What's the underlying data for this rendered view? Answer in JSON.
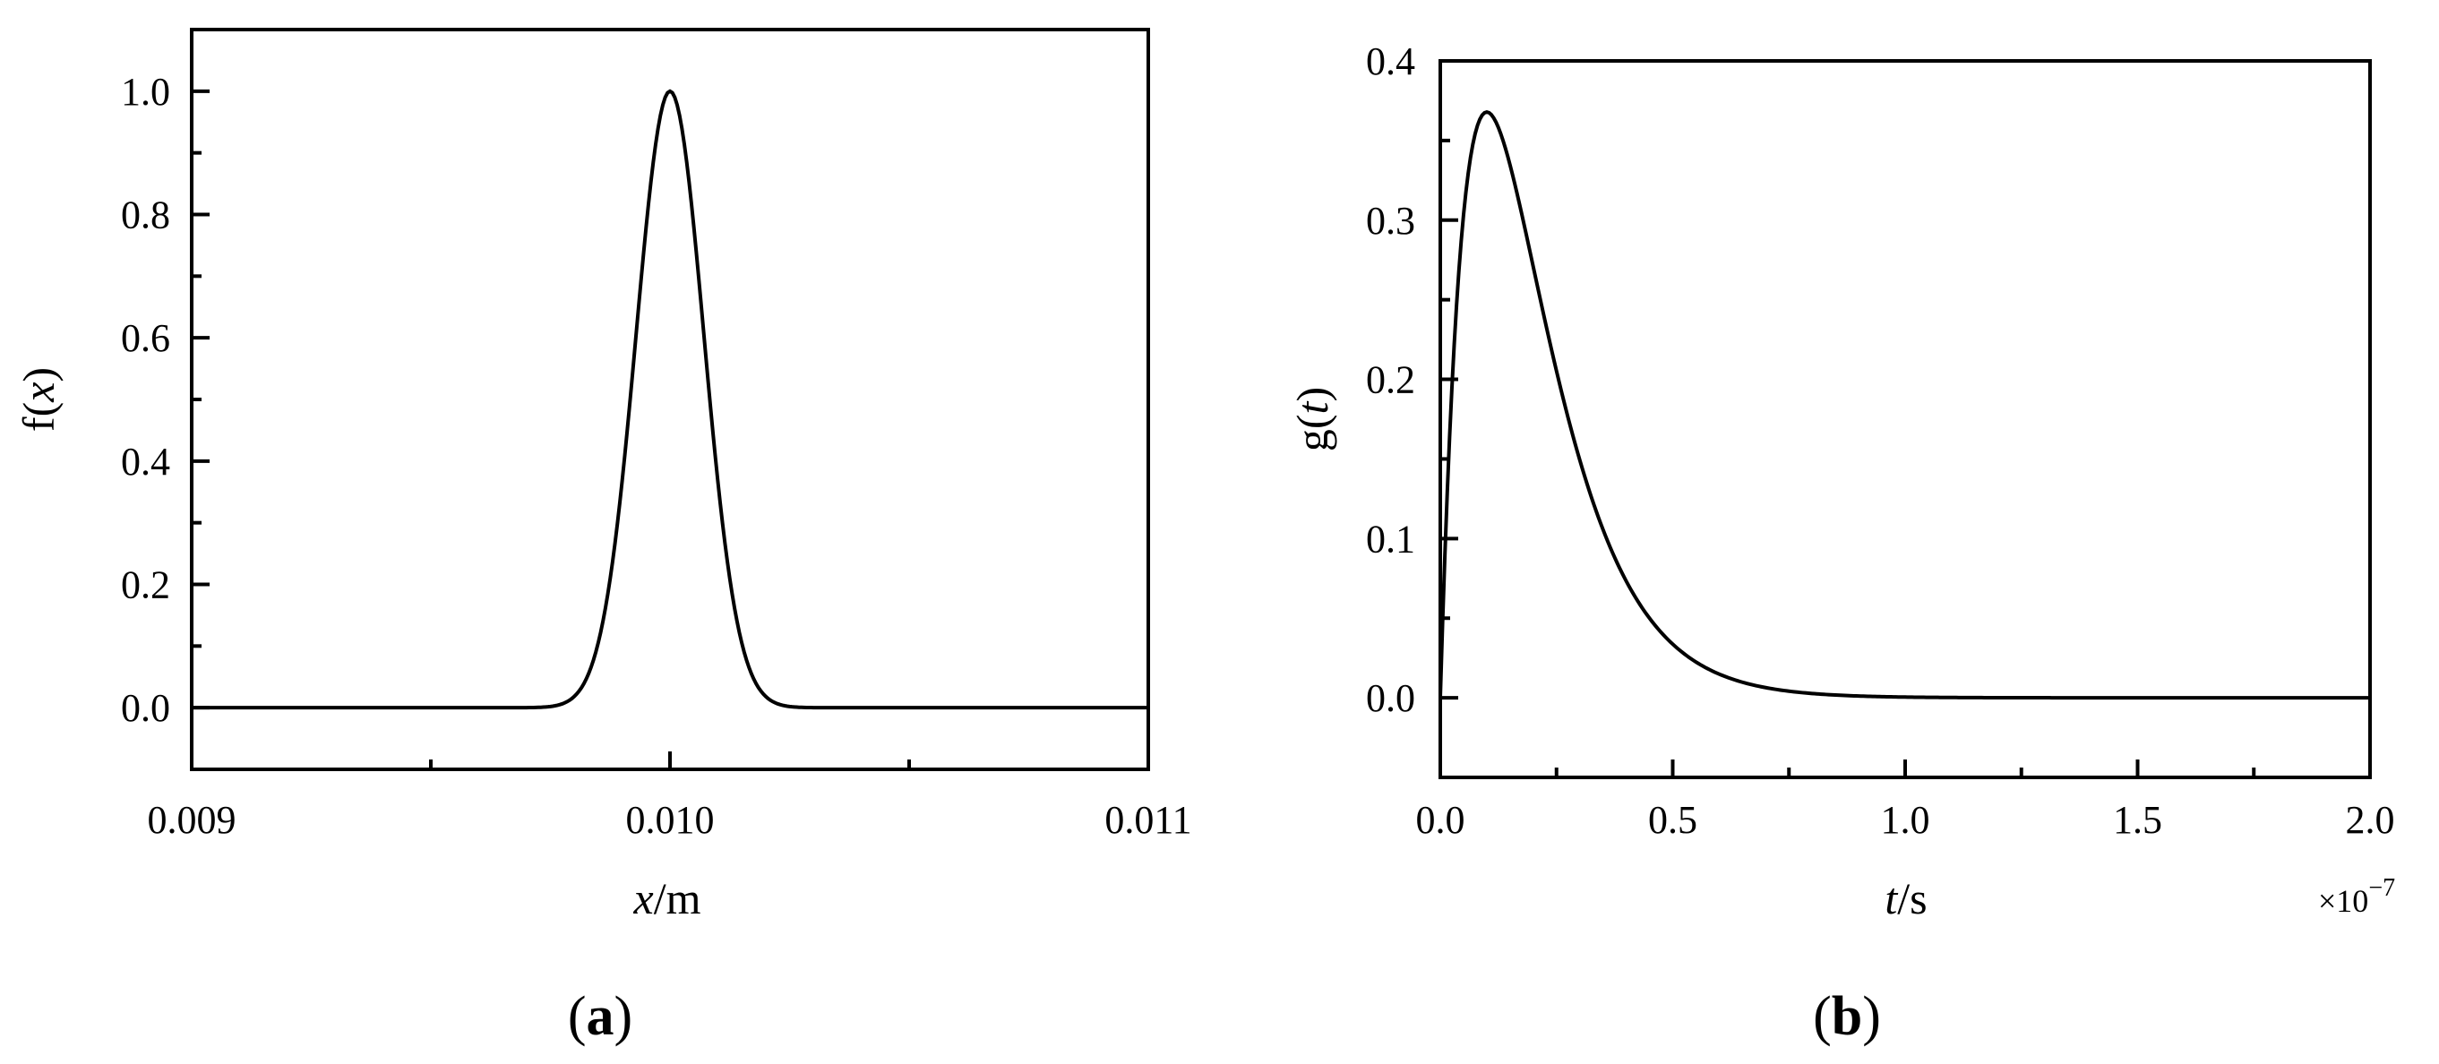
{
  "chart_data": [
    {
      "type": "line",
      "panel_label": "(a)",
      "panel_letter": "a",
      "ylabel_main": "f(",
      "ylabel_var": "x",
      "ylabel_close": ")",
      "xlabel_var": "x",
      "xlabel_unit": "/m",
      "xlim": [
        0.009,
        0.011
      ],
      "ylim": [
        -0.1,
        1.1
      ],
      "x_ticks": [
        "0.009",
        "0.010",
        "0.011"
      ],
      "x_tick_values": [
        0.009,
        0.01,
        0.011
      ],
      "y_ticks": [
        "0.0",
        "0.2",
        "0.4",
        "0.6",
        "0.8",
        "1.0"
      ],
      "y_tick_values": [
        0.0,
        0.2,
        0.4,
        0.6,
        0.8,
        1.0
      ],
      "grid": false,
      "series": [
        {
          "x": [
            0.009,
            0.0095,
            0.0097,
            0.00975,
            0.0098,
            0.00985,
            0.0099,
            0.00995,
            0.01,
            0.01005,
            0.0101,
            0.01015,
            0.0102,
            0.01025,
            0.0103,
            0.0105,
            0.011
          ],
          "y": [
            0.0,
            0.0,
            0.0,
            0.002,
            0.02,
            0.1,
            0.37,
            0.78,
            1.0,
            0.78,
            0.37,
            0.1,
            0.02,
            0.002,
            0.0,
            0.0,
            0.0
          ],
          "color": "#000000"
        }
      ]
    },
    {
      "type": "line",
      "panel_label": "(b)",
      "panel_letter": "b",
      "ylabel_main": "g(",
      "ylabel_var": "t",
      "ylabel_close": ")",
      "xlabel_var": "t",
      "xlabel_unit": "/s",
      "x_multiplier_base": "×10",
      "x_multiplier_exp": "−7",
      "xlim": [
        0.0,
        2.0
      ],
      "ylim": [
        -0.05,
        0.4
      ],
      "x_ticks": [
        "0.0",
        "0.5",
        "1.0",
        "1.5",
        "2.0"
      ],
      "x_tick_values": [
        0.0,
        0.5,
        1.0,
        1.5,
        2.0
      ],
      "y_ticks": [
        "0.0",
        "0.1",
        "0.2",
        "0.3",
        "0.4"
      ],
      "y_tick_values": [
        0.0,
        0.1,
        0.2,
        0.3,
        0.4
      ],
      "grid": false,
      "series": [
        {
          "x": [
            0.0,
            0.02,
            0.05,
            0.08,
            0.1,
            0.15,
            0.2,
            0.25,
            0.3,
            0.4,
            0.5,
            0.6,
            0.7,
            0.8,
            1.0,
            1.2,
            1.5,
            2.0
          ],
          "y": [
            0.0,
            0.164,
            0.303,
            0.359,
            0.368,
            0.335,
            0.271,
            0.205,
            0.149,
            0.073,
            0.034,
            0.015,
            0.006,
            0.003,
            0.0005,
            0.0001,
            0.0,
            0.0
          ],
          "color": "#000000"
        }
      ]
    }
  ]
}
